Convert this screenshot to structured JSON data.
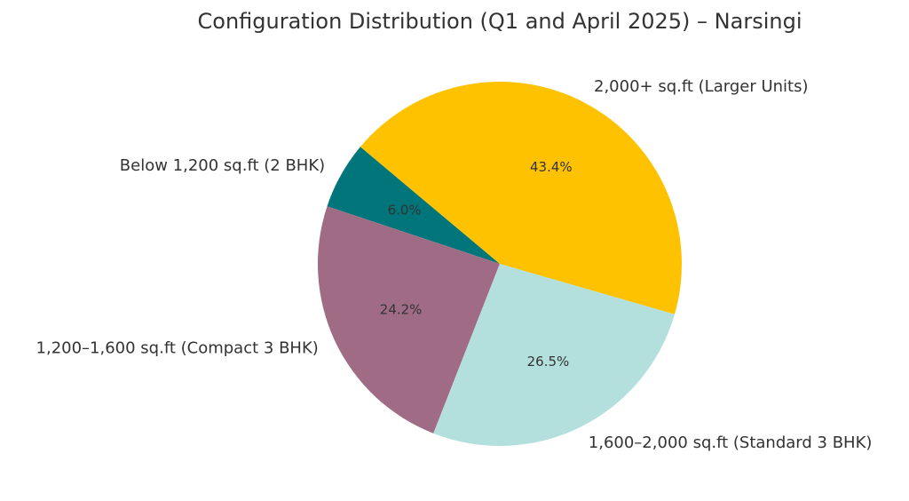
{
  "chart_data": {
    "type": "pie",
    "title": "Configuration Distribution (Q1 and April 2025) – Narsingi",
    "start_angle_deg": 140,
    "direction": "counterclockwise",
    "slices": [
      {
        "label": "Below 1,200 sq.ft (2 BHK)",
        "value": 6.0,
        "pct_label": "6.0%",
        "color": "#00757A"
      },
      {
        "label": "1,200–1,600 sq.ft (Compact 3 BHK)",
        "value": 24.2,
        "pct_label": "24.2%",
        "color": "#A06C85"
      },
      {
        "label": "1,600–2,000 sq.ft (Standard 3 BHK)",
        "value": 26.5,
        "pct_label": "26.5%",
        "color": "#B3E0DD"
      },
      {
        "label": "2,000+ sq.ft (Larger Units)",
        "value": 43.4,
        "pct_label": "43.4%",
        "color": "#FFC200"
      }
    ]
  }
}
